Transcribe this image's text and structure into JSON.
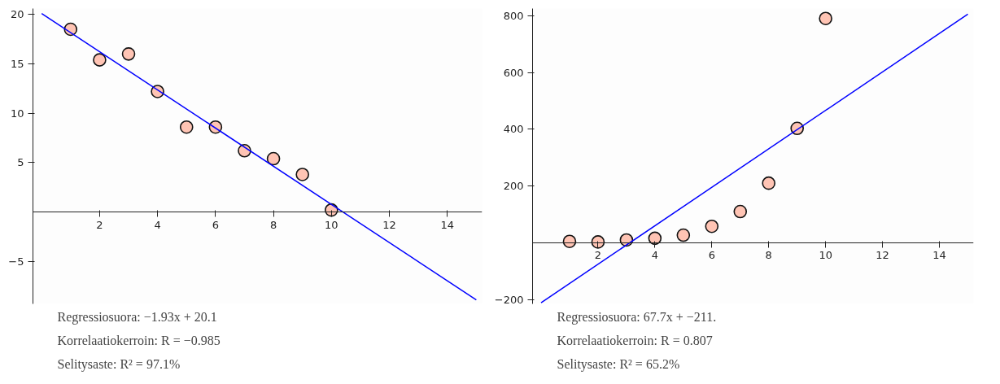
{
  "chart_data": [
    {
      "type": "scatter",
      "xlim": [
        -0.3,
        15.2
      ],
      "ylim": [
        -9.3,
        20.6
      ],
      "xticks": [
        2,
        4,
        6,
        8,
        10,
        12,
        14
      ],
      "yticks": [
        -5,
        5,
        10,
        15,
        20
      ],
      "grid": false,
      "series": [
        {
          "marker": "circle",
          "color": "#ffc4b4",
          "x": [
            1,
            2,
            3,
            4,
            5,
            6,
            7,
            8,
            9,
            10
          ],
          "values": [
            18.5,
            15.4,
            16.0,
            12.2,
            8.6,
            8.6,
            6.2,
            5.4,
            3.8,
            0.2
          ]
        },
        {
          "type": "line",
          "color": "#0000ff",
          "x": [
            0,
            15
          ],
          "values": [
            20.1,
            -8.9
          ]
        }
      ],
      "annotations": [
        "Regressiosuora: −1.93x + 20.1",
        "Korrelaatiokerroin: R = −0.985",
        "Selitysaste: R² = 97.1%"
      ]
    },
    {
      "type": "scatter",
      "xlim": [
        -0.3,
        15.2
      ],
      "ylim": [
        -215,
        825
      ],
      "xticks": [
        2,
        4,
        6,
        8,
        10,
        12,
        14
      ],
      "yticks": [
        -200,
        200,
        400,
        600,
        800
      ],
      "grid": false,
      "series": [
        {
          "marker": "circle",
          "color": "#ffc4b4",
          "x": [
            1,
            2,
            3,
            4,
            5,
            6,
            7,
            8,
            9,
            10
          ],
          "values": [
            5,
            3,
            10,
            16,
            27,
            58,
            110,
            210,
            403,
            790
          ]
        },
        {
          "type": "line",
          "color": "#0000ff",
          "x": [
            0,
            15
          ],
          "values": [
            -211,
            805
          ]
        }
      ],
      "annotations": [
        "Regressiosuora: 67.7x + −211.",
        "Korrelaatiokerroin: R = 0.807",
        "Selitysaste: R² = 65.2%"
      ]
    }
  ]
}
